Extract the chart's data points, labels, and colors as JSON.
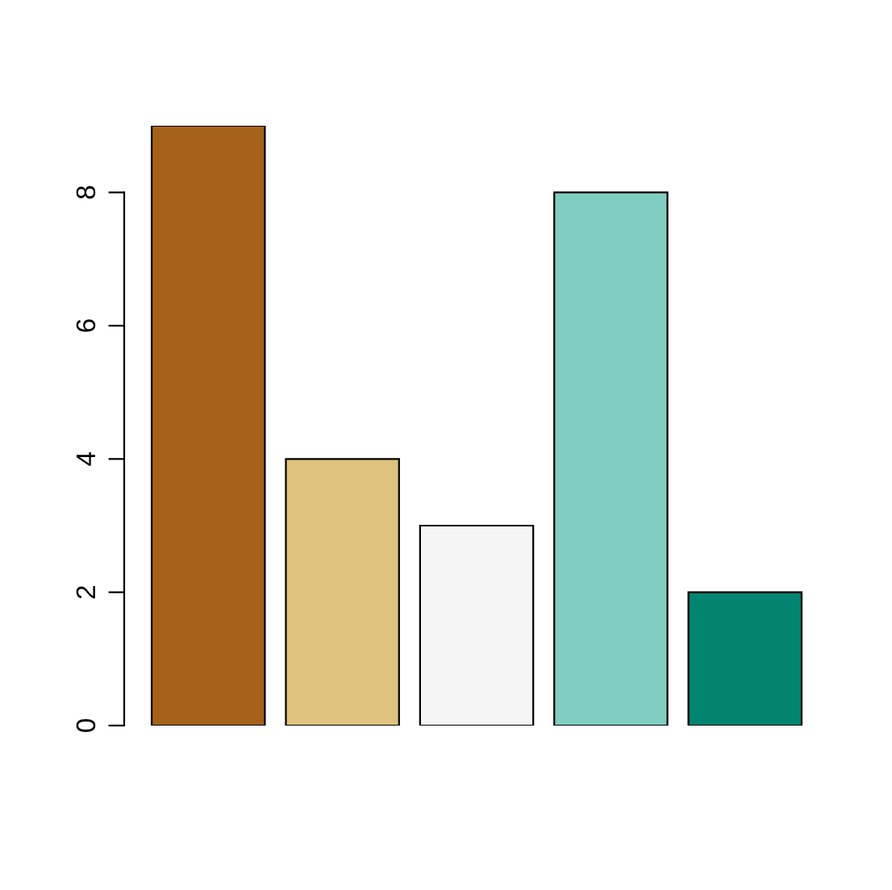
{
  "chart_data": {
    "type": "bar",
    "categories": [
      null,
      null,
      null,
      null,
      null
    ],
    "values": [
      9,
      4,
      3,
      8,
      2
    ],
    "colors": [
      "#a6611a",
      "#dfc27d",
      "#f5f5f5",
      "#80cdc1",
      "#018571"
    ],
    "ylim": [
      0,
      9
    ],
    "yticks": [
      0,
      2,
      4,
      6,
      8
    ],
    "grid": false,
    "tick_labels": "y"
  }
}
